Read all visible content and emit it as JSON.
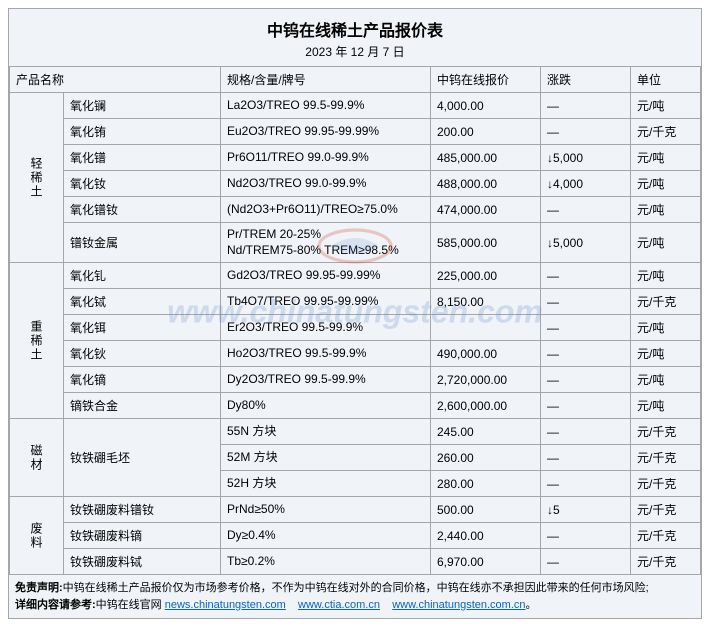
{
  "title": "中钨在线稀土产品报价表",
  "date": "2023 年 12 月 7 日",
  "headers": {
    "name": "产品名称",
    "spec": "规格/含量/牌号",
    "price": "中钨在线报价",
    "change": "涨跌",
    "unit": "单位"
  },
  "categories": [
    {
      "label": "轻稀土",
      "rows": [
        {
          "name": "氧化镧",
          "spec": "La2O3/TREO 99.5-99.9%",
          "price": "4,000.00",
          "change": "—",
          "unit": "元/吨"
        },
        {
          "name": "氧化铕",
          "spec": "Eu2O3/TREO 99.95-99.99%",
          "price": "200.00",
          "change": "—",
          "unit": "元/千克"
        },
        {
          "name": "氧化镨",
          "spec": "Pr6O11/TREO 99.0-99.9%",
          "price": "485,000.00",
          "change": "↓5,000",
          "unit": "元/吨"
        },
        {
          "name": "氧化钕",
          "spec": "Nd2O3/TREO 99.0-99.9%",
          "price": "488,000.00",
          "change": "↓4,000",
          "unit": "元/吨"
        },
        {
          "name": "氧化镨钕",
          "spec": "(Nd2O3+Pr6O11)/TREO≥75.0%",
          "price": "474,000.00",
          "change": "—",
          "unit": "元/吨"
        },
        {
          "name": "镨钕金属",
          "spec": "Pr/TREM 20-25%\nNd/TREM75-80% TREM≥98.5%",
          "price": "585,000.00",
          "change": "↓5,000",
          "unit": "元/吨"
        }
      ]
    },
    {
      "label": "重稀土",
      "rows": [
        {
          "name": "氧化钆",
          "spec": "Gd2O3/TREO 99.95-99.99%",
          "price": "225,000.00",
          "change": "—",
          "unit": "元/吨"
        },
        {
          "name": "氧化铽",
          "spec": "Tb4O7/TREO 99.95-99.99%",
          "price": "8,150.00",
          "change": "—",
          "unit": "元/千克"
        },
        {
          "name": "氧化铒",
          "spec": "Er2O3/TREO 99.5-99.9%",
          "price": "",
          "change": "—",
          "unit": "元/吨"
        },
        {
          "name": "氧化钬",
          "spec": "Ho2O3/TREO 99.5-99.9%",
          "price": "490,000.00",
          "change": "—",
          "unit": "元/吨"
        },
        {
          "name": "氧化镝",
          "spec": "Dy2O3/TREO 99.5-99.9%",
          "price": "2,720,000.00",
          "change": "—",
          "unit": "元/吨"
        },
        {
          "name": "镝铁合金",
          "spec": "Dy80%",
          "price": "2,600,000.00",
          "change": "—",
          "unit": "元/吨"
        }
      ]
    },
    {
      "label": "磁材",
      "rows": [
        {
          "name": "钕铁硼毛坯",
          "spec": "55N 方块",
          "price": "245.00",
          "change": "—",
          "unit": "元/千克",
          "rowspan": 3
        },
        {
          "spec": "52M 方块",
          "price": "260.00",
          "change": "—",
          "unit": "元/千克"
        },
        {
          "spec": "52H 方块",
          "price": "280.00",
          "change": "—",
          "unit": "元/千克"
        }
      ]
    },
    {
      "label": "废料",
      "rows": [
        {
          "name": "钕铁硼废料镨钕",
          "spec": "PrNd≥50%",
          "price": "500.00",
          "change": "↓5",
          "unit": "元/千克"
        },
        {
          "name": "钕铁硼废料镝",
          "spec": "Dy≥0.4%",
          "price": "2,440.00",
          "change": "—",
          "unit": "元/千克"
        },
        {
          "name": "钕铁硼废料铽",
          "spec": "Tb≥0.2%",
          "price": "6,970.00",
          "change": "—",
          "unit": "元/千克"
        }
      ]
    }
  ],
  "disclaimer": {
    "line1_label": "免责声明:",
    "line1_text": "中钨在线稀土产品报价仅为市场参考价格，不作为中钨在线对外的合同价格，中钨在线亦不承担因此带来的任何市场风险;",
    "line2_label": "详细内容请参考:",
    "line2_text": "中钨在线官网 ",
    "links": [
      "news.chinatungsten.com",
      "www.ctia.com.cn",
      "www.chinatungsten.com.cn"
    ]
  },
  "watermark": "www.chinatungsten.com"
}
